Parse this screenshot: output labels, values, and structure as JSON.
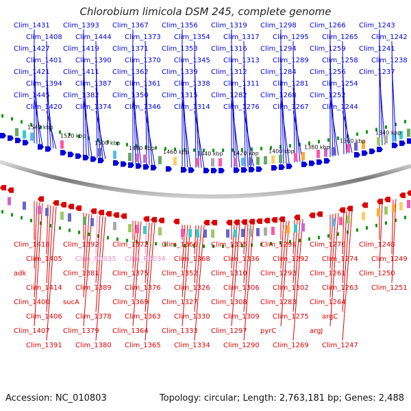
{
  "title": "Chlorobium limicola DSM 245, complete genome",
  "footer": {
    "accession": "Accession: NC_010803",
    "stats": "Topology: circular; Length: 2,763,181 bp; Genes: 2,488"
  },
  "colors": {
    "forward": "#0000dd",
    "reverse": "#dd0000",
    "rna": "#ee88cc",
    "backbone": "#888888",
    "tick": "#119911"
  },
  "top_labels": [
    "Clim_1431",
    "Clim_1408",
    "Clim_1427",
    "Clim_1401",
    "Clim_1421",
    "Clim_1394",
    "Clim_1445",
    "Clim_1420",
    "Clim_1393",
    "Clim_1444",
    "Clim_1419",
    "Clim_1390",
    "Clim_1411",
    "Clim_1387",
    "Clim_1382",
    "Clim_1374",
    "Clim_1367",
    "Clim_1373",
    "Clim_1371",
    "Clim_1370",
    "Clim_1362",
    "Clim_1361",
    "Clim_1350",
    "Clim_1346",
    "Clim_1356",
    "Clim_1354",
    "Clim_1353",
    "Clim_1345",
    "Clim_1339",
    "Clim_1338",
    "Clim_1315",
    "Clim_1314",
    "Clim_1319",
    "Clim_1317",
    "Clim_1316",
    "Clim_1313",
    "Clim_1312",
    "Clim_1311",
    "Clim_1282",
    "Clim_1276",
    "Clim_1298",
    "Clim_1295",
    "Clim_1294",
    "Clim_1289",
    "Clim_1284",
    "Clim_1281",
    "Clim_1268",
    "Clim_1267",
    "Clim_1266",
    "Clim_1265",
    "Clim_1259",
    "Clim_1258",
    "Clim_1256",
    "Clim_1254",
    "Clim_1252",
    "Clim_1244",
    "Clim_1243",
    "Clim_1242",
    "Clim_1241",
    "Clim_1238",
    "Clim_1237"
  ],
  "bottom_labels": [
    "Clim_1418",
    "Clim_1405",
    "adk",
    "Clim_1414",
    "Clim_1400",
    "Clim_1406",
    "Clim_1407",
    "Clim_1391",
    "Clim_1392",
    "Clim_R0035",
    "Clim_1381",
    "Clim_1389",
    "sucA",
    "Clim_1378",
    "Clim_1379",
    "Clim_1380",
    "Clim_1372",
    "Clim_R0034",
    "Clim_1375",
    "Clim_1376",
    "Clim_1369",
    "Clim_1363",
    "Clim_1364",
    "Clim_1365",
    "Clim_1366",
    "Clim_1368",
    "Clim_1352",
    "Clim_1326",
    "Clim_1327",
    "Clim_1330",
    "Clim_1333",
    "Clim_1334",
    "Clim_1335",
    "Clim_1336",
    "Clim_1310",
    "Clim_1306",
    "Clim_1308",
    "Clim_1309",
    "Clim_1297",
    "Clim_1290",
    "Clim_1291",
    "Clim_1292",
    "Clim_1293",
    "Clim_1302",
    "Clim_1283",
    "Clim_1275",
    "pyrC",
    "Clim_1269",
    "Clim_1270",
    "Clim_1274",
    "Clim_1261",
    "Clim_1263",
    "Clim_1264",
    "argC",
    "argJ",
    "Clim_1247",
    "Clim_1248",
    "Clim_1249",
    "Clim_1250",
    "Clim_1251"
  ],
  "rna_labels": [
    "Clim_R0035",
    "Clim_R0034"
  ],
  "ticks": [
    "1540 kbp",
    "1520 kbp",
    "1500 kbp",
    "1480 kbp",
    "1460 kbp",
    "1440 kbp",
    "1420 kbp",
    "1400 kbp",
    "1380 kbp",
    "1360 kbp",
    "1340 kbp"
  ]
}
